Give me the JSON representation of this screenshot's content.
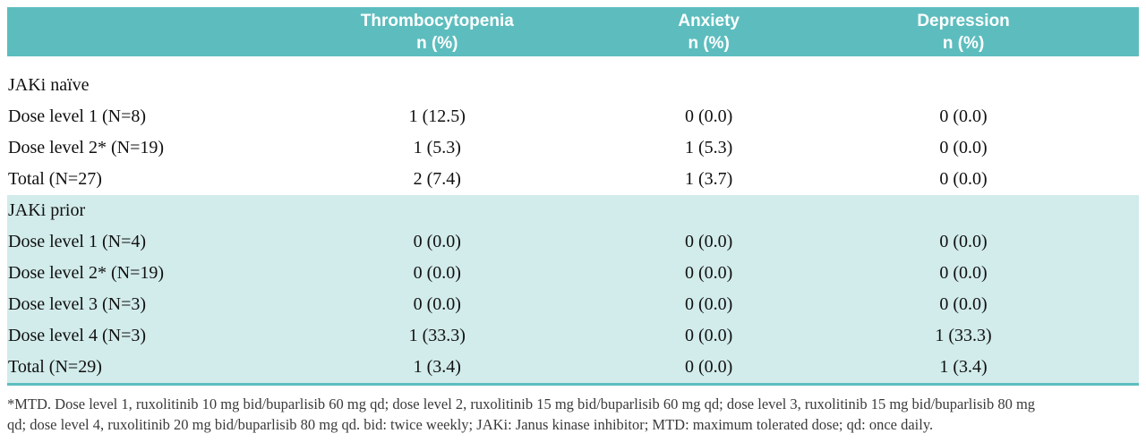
{
  "header": {
    "columns": [
      {
        "title": "Thrombocytopenia",
        "subtitle": "n (%)"
      },
      {
        "title": "Anxiety",
        "subtitle": "n (%)"
      },
      {
        "title": "Depression",
        "subtitle": "n (%)"
      }
    ]
  },
  "table": {
    "sections": [
      {
        "label": "JAKi naïve",
        "rows": [
          {
            "label": "Dose level 1 (N=8)",
            "values": [
              "1 (12.5)",
              "0 (0.0)",
              "0 (0.0)"
            ]
          },
          {
            "label": "Dose level 2* (N=19)",
            "values": [
              "1 (5.3)",
              "1 (5.3)",
              "0 (0.0)"
            ]
          },
          {
            "label": "Total (N=27)",
            "values": [
              "2 (7.4)",
              "1 (3.7)",
              "0 (0.0)"
            ]
          }
        ]
      },
      {
        "label": "JAKi prior",
        "rows": [
          {
            "label": "Dose level 1 (N=4)",
            "values": [
              "0 (0.0)",
              "0 (0.0)",
              "0 (0.0)"
            ]
          },
          {
            "label": "Dose level 2* (N=19)",
            "values": [
              "0 (0.0)",
              "0 (0.0)",
              "0 (0.0)"
            ]
          },
          {
            "label": "Dose level 3 (N=3)",
            "values": [
              "0 (0.0)",
              "0 (0.0)",
              "0 (0.0)"
            ]
          },
          {
            "label": "Dose level 4 (N=3)",
            "values": [
              "1 (33.3)",
              "0 (0.0)",
              "1 (33.3)"
            ]
          },
          {
            "label": "Total (N=29)",
            "values": [
              "1 (3.4)",
              "0 (0.0)",
              "1 (3.4)"
            ]
          }
        ]
      }
    ]
  },
  "footnote": {
    "lines": [
      "*MTD. Dose level 1, ruxolitinib 10 mg bid/buparlisib 60 mg qd; dose level 2, ruxolitinib 15 mg bid/buparlisib 60 mg qd; dose level 3, ruxolitinib 15 mg bid/buparlisib 80 mg",
      "qd; dose level 4, ruxolitinib 20 mg bid/buparlisib 80 mg qd. bid: twice weekly; JAKi: Janus kinase inhibitor; MTD: maximum tolerated dose; qd: once daily."
    ]
  },
  "colors": {
    "header_bg": "#5dbdbe",
    "header_text": "#ffffff",
    "section_bg": "#d2ebeb",
    "rule_color": "#5dbdbe",
    "footnote_text": "#3a3a3a"
  }
}
